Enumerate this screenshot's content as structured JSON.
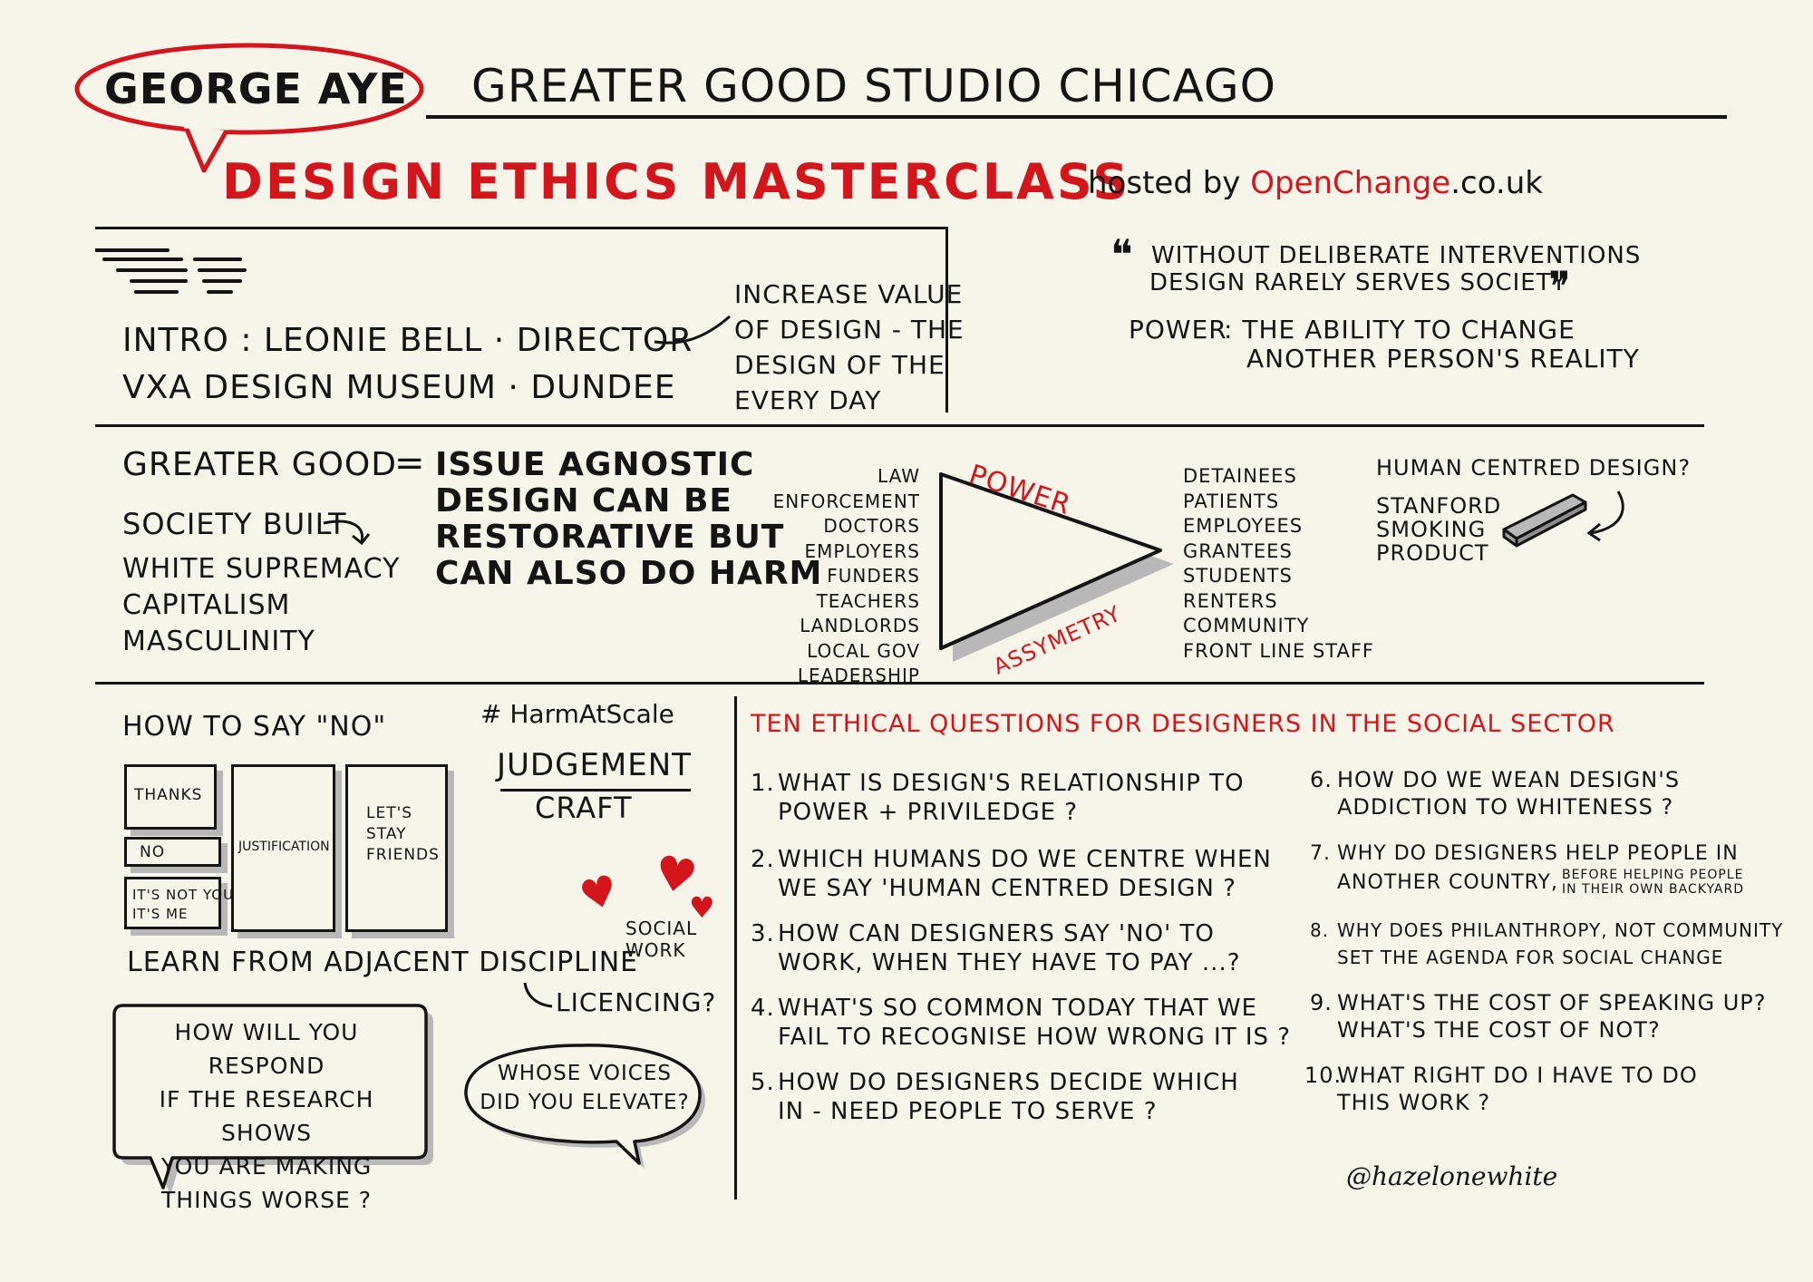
{
  "colors": {
    "accent": "#d3161b",
    "ink": "#141414",
    "paper": "#f7f4ea",
    "shadow": "#b8b8b8"
  },
  "header": {
    "speaker": "GEORGE AYE",
    "org": "GREATER GOOD STUDIO CHICAGO",
    "title": "DESIGN ETHICS MASTERCLASS",
    "hosted_prefix": "hosted by",
    "host_brand": "OpenChange",
    "host_suffix": ".co.uk"
  },
  "intro": {
    "line1": "INTRO : LEONIE BELL · DIRECTOR",
    "line2": "VXA DESIGN MUSEUM · DUNDEE",
    "note": [
      "INCREASE VALUE",
      "OF DESIGN - THE",
      "DESIGN OF THE",
      "EVERY DAY"
    ]
  },
  "quote": {
    "open_mark": "❝",
    "line1": "WITHOUT DELIBERATE INTERVENTIONS",
    "line2": "DESIGN RARELY SERVES SOCIETY",
    "close_mark": "❞",
    "power_label": "POWER",
    "power_def1": ": THE ABILITY TO CHANGE",
    "power_def2": "ANOTHER PERSON'S REALITY"
  },
  "greater_good": {
    "left": "GREATER GOOD",
    "equals": "=",
    "right": [
      "ISSUE AGNOSTIC",
      "DESIGN CAN BE",
      "RESTORATIVE BUT",
      "CAN ALSO DO HARM"
    ],
    "society_built": "SOCIETY BUILT",
    "society_items": [
      "WHITE SUPREMACY",
      "CAPITALISM",
      "MASCULINITY"
    ]
  },
  "power_diagram": {
    "top_label": "POWER",
    "bottom_label": "ASSYMETRY",
    "left_items": [
      "LAW ENFORCEMENT",
      "DOCTORS",
      "EMPLOYERS",
      "FUNDERS",
      "TEACHERS",
      "LANDLORDS",
      "LOCAL GOV",
      "LEADERSHIP"
    ],
    "right_items": [
      "DETAINEES",
      "PATIENTS",
      "EMPLOYEES",
      "GRANTEES",
      "STUDENTS",
      "RENTERS",
      "COMMUNITY",
      "FRONT LINE STAFF"
    ]
  },
  "hcd": {
    "question": "HUMAN CENTRED DESIGN?",
    "items": [
      "STANFORD",
      "SMOKING",
      "PRODUCT"
    ]
  },
  "say_no": {
    "heading": "HOW TO SAY \"NO\"",
    "thanks": "THANKS",
    "no": "NO",
    "not_you": [
      "IT'S NOT YOU",
      "IT'S ME"
    ],
    "justification": "JUSTIFICATION",
    "friends": [
      "LET'S",
      "STAY",
      "FRIENDS"
    ]
  },
  "harm": {
    "hashtag": "# HarmAtScale",
    "judgement": "JUDGEMENT",
    "craft": "CRAFT",
    "social_work": [
      "SOCIAL",
      "WORK"
    ],
    "learn": "LEARN FROM ADJACENT DISCIPLINE",
    "licencing": "LICENCING?",
    "research_bubble": [
      "HOW WILL YOU RESPOND",
      "IF THE RESEARCH SHOWS",
      "YOU ARE MAKING",
      "THINGS WORSE ?"
    ],
    "voices_bubble": [
      "WHOSE VOICES",
      "DID YOU ELEVATE?"
    ]
  },
  "questions": {
    "heading": "TEN ETHICAL QUESTIONS FOR DESIGNERS IN THE SOCIAL SECTOR",
    "left": [
      {
        "num": "1.",
        "lines": [
          "WHAT IS DESIGN'S RELATIONSHIP TO",
          "POWER + PRIVILEDGE ?"
        ]
      },
      {
        "num": "2.",
        "lines": [
          "WHICH HUMANS DO WE CENTRE WHEN",
          "WE SAY 'HUMAN CENTRED DESIGN ?"
        ]
      },
      {
        "num": "3.",
        "lines": [
          "HOW CAN DESIGNERS SAY 'NO' TO",
          "WORK, WHEN THEY HAVE TO PAY ...?"
        ]
      },
      {
        "num": "4.",
        "lines": [
          "WHAT'S SO COMMON TODAY THAT WE",
          "FAIL TO RECOGNISE HOW WRONG IT IS ?"
        ]
      },
      {
        "num": "5.",
        "lines": [
          "HOW DO DESIGNERS DECIDE WHICH",
          "IN - NEED PEOPLE TO SERVE ?"
        ]
      }
    ],
    "right": [
      {
        "num": "6.",
        "lines": [
          "HOW DO WE WEAN DESIGN'S",
          "ADDICTION TO WHITENESS ?"
        ]
      },
      {
        "num": "7.",
        "lines": [
          "WHY DO DESIGNERS HELP PEOPLE IN",
          "ANOTHER COUNTRY,"
        ],
        "aside": [
          "BEFORE HELPING PEOPLE",
          "IN THEIR OWN BACKYARD"
        ]
      },
      {
        "num": "8.",
        "lines": [
          "WHY DOES PHILANTHROPY, NOT COMMUNITY",
          "SET THE AGENDA FOR SOCIAL CHANGE"
        ]
      },
      {
        "num": "9.",
        "lines": [
          "WHAT'S THE COST OF SPEAKING UP?",
          "WHAT'S THE COST OF NOT?"
        ]
      },
      {
        "num": "10.",
        "lines": [
          "WHAT RIGHT DO I HAVE TO DO",
          "THIS WORK ?"
        ]
      }
    ]
  },
  "signature": "@hazelonewhite"
}
